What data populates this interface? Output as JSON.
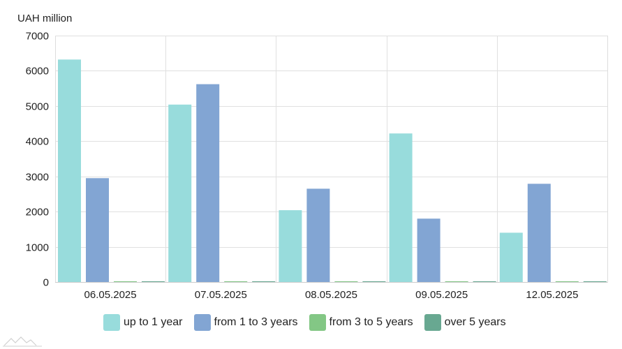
{
  "chart_data": {
    "type": "bar",
    "unit_label": "UAH million",
    "categories": [
      "06.05.2025",
      "07.05.2025",
      "08.05.2025",
      "09.05.2025",
      "12.05.2025"
    ],
    "series": [
      {
        "name": "up to 1 year",
        "color": "#98dcdc",
        "values": [
          6320,
          5040,
          2040,
          4220,
          1400
        ]
      },
      {
        "name": "from 1 to 3 years",
        "color": "#82a5d3",
        "values": [
          2950,
          5620,
          2650,
          1800,
          2790
        ]
      },
      {
        "name": "from 3 to 5 years",
        "color": "#83c785",
        "values": [
          0,
          0,
          0,
          0,
          0
        ]
      },
      {
        "name": "over 5 years",
        "color": "#68a891",
        "values": [
          0,
          0,
          0,
          0,
          0
        ]
      }
    ],
    "ylim": [
      0,
      7000
    ],
    "yticks": [
      0,
      1000,
      2000,
      3000,
      4000,
      5000,
      6000,
      7000
    ],
    "grid": true,
    "legend_position": "bottom"
  }
}
